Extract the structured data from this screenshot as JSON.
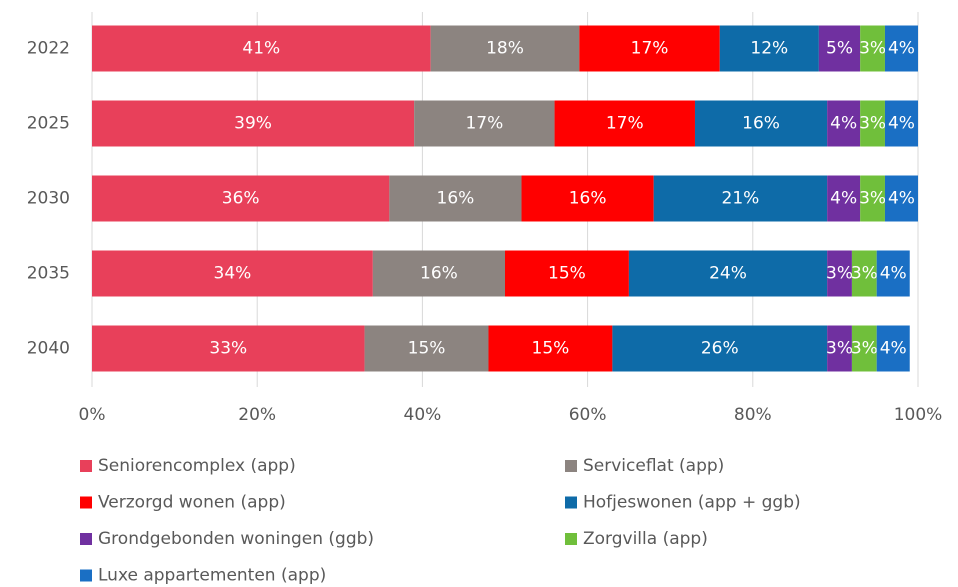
{
  "chart_data": {
    "type": "stacked_bar_horizontal",
    "categories": [
      "2022",
      "2025",
      "2030",
      "2035",
      "2040"
    ],
    "series": [
      {
        "name": "Seniorencomplex (app)",
        "color": "#e8405a",
        "values": [
          41,
          39,
          36,
          34,
          33
        ],
        "value_labels": [
          "41%",
          "39%",
          "36%",
          "34%",
          "33%"
        ]
      },
      {
        "name": "Serviceflat (app)",
        "color": "#8c8480",
        "values": [
          18,
          17,
          16,
          16,
          15
        ],
        "value_labels": [
          "18%",
          "17%",
          "16%",
          "16%",
          "15%"
        ]
      },
      {
        "name": "Verzorgd wonen (app)",
        "color": "#ff0000",
        "values": [
          17,
          17,
          16,
          15,
          15
        ],
        "value_labels": [
          "17%",
          "17%",
          "16%",
          "15%",
          "15%"
        ]
      },
      {
        "name": "Hofjeswonen (app + ggb)",
        "color": "#0e6ba8",
        "values": [
          12,
          16,
          21,
          24,
          26
        ],
        "value_labels": [
          "12%",
          "16%",
          "21%",
          "24%",
          "26%"
        ]
      },
      {
        "name": "Grondgebonden woningen (ggb)",
        "color": "#7030a0",
        "values": [
          5,
          4,
          4,
          3,
          3
        ],
        "value_labels": [
          "5%",
          "4%",
          "4%",
          "3%",
          "3%"
        ]
      },
      {
        "name": "Zorgvilla (app)",
        "color": "#70bf3b",
        "values": [
          3,
          3,
          3,
          3,
          3
        ],
        "value_labels": [
          "3%",
          "3%",
          "3%",
          "3%",
          "3%"
        ]
      },
      {
        "name": "Luxe appartementen (app)",
        "color": "#1a6fc4",
        "values": [
          4,
          4,
          4,
          4,
          4
        ],
        "value_labels": [
          "4%",
          "4%",
          "4%",
          "4%",
          "4%"
        ]
      }
    ],
    "xlim": [
      0,
      100
    ],
    "xticks": [
      {
        "value": 0,
        "label": "0%"
      },
      {
        "value": 20,
        "label": "20%"
      },
      {
        "value": 40,
        "label": "40%"
      },
      {
        "value": 60,
        "label": "60%"
      },
      {
        "value": 80,
        "label": "80%"
      },
      {
        "value": 100,
        "label": "100%"
      }
    ],
    "grid": true,
    "legend": "bottom"
  }
}
